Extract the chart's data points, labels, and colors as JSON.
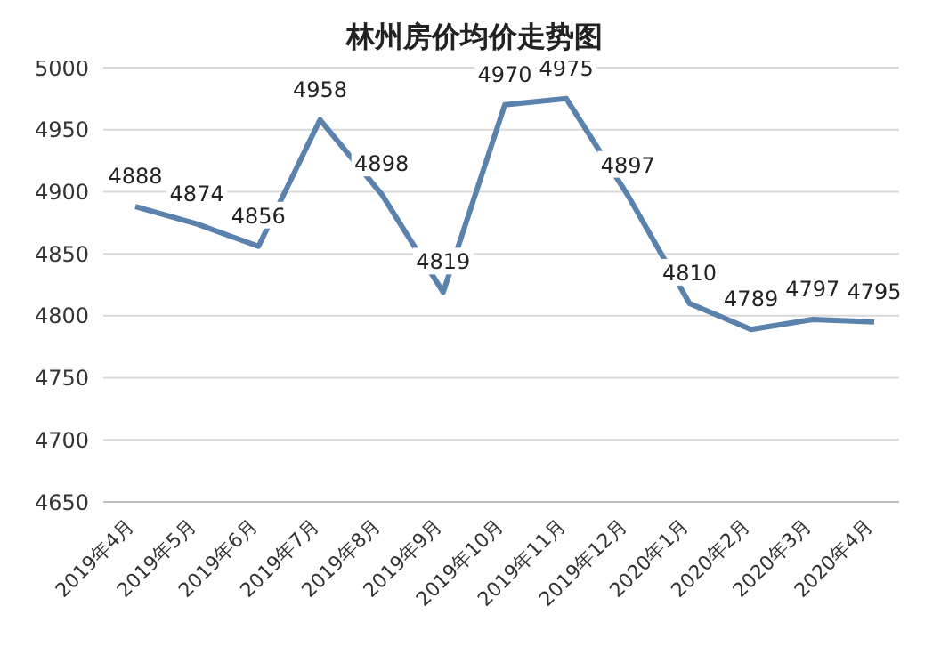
{
  "chart_data": {
    "type": "line",
    "title": "林州房价均价走势图",
    "categories": [
      "2019年4月",
      "2019年5月",
      "2019年6月",
      "2019年7月",
      "2019年8月",
      "2019年9月",
      "2019年10月",
      "2019年11月",
      "2019年12月",
      "2020年1月",
      "2020年2月",
      "2020年3月",
      "2020年4月"
    ],
    "series": [
      {
        "color": "#5b82ad",
        "values": [
          4888,
          4874,
          4856,
          4958,
          4898,
          4819,
          4970,
          4975,
          4897,
          4810,
          4789,
          4797,
          4795
        ]
      }
    ],
    "ylim": [
      4650,
      5000
    ],
    "yticks": [
      4650,
      4700,
      4750,
      4800,
      4850,
      4900,
      4950,
      5000
    ],
    "grid": "y",
    "data_labels": true,
    "marker": "none",
    "line_style": "solid",
    "legend": false
  }
}
